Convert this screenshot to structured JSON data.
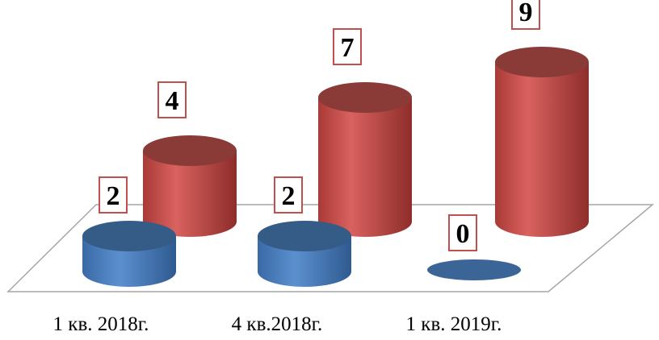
{
  "chart_data": {
    "type": "bar",
    "style": "3d-cylinder",
    "categories": [
      "1 кв. 2018г.",
      "4 кв.2018г.",
      "1 кв. 2019г."
    ],
    "series": [
      {
        "color": "#4a7ebb",
        "values": [
          2,
          2,
          0
        ]
      },
      {
        "color": "#c0504d",
        "values": [
          4,
          7,
          9
        ]
      }
    ],
    "ylim": [
      0,
      9
    ],
    "grid": false,
    "legend": "none"
  }
}
